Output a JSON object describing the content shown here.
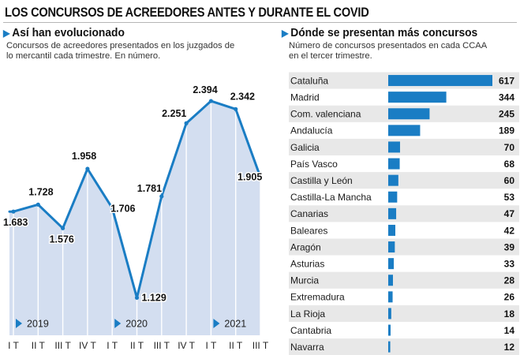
{
  "title": "LOS CONCURSOS DE ACREEDORES ANTES Y DURANTE EL COVID",
  "left": {
    "heading": "Así han evolucionado",
    "description": "Concursos de acreedores presentados en los juzgados de lo mercantil cada trimestre. En número."
  },
  "right": {
    "heading": "Dónde se presentan más concursos",
    "description": "Número de concursos presentados en cada CCAA en el tercer trimestre."
  },
  "colors": {
    "accent": "#1a7dc4",
    "area_fill": "#d3def0",
    "line": "#1a7dc4"
  },
  "icons": {
    "section_marker": "triangle-right-icon",
    "year_marker": "play-triangle-icon"
  },
  "chart_data": [
    {
      "type": "area",
      "categories": [
        "I T",
        "II T",
        "III T",
        "IV T",
        "I T",
        "II T",
        "III T",
        "IV T",
        "I T",
        "II T",
        "III T"
      ],
      "value_labels": [
        "1.683",
        "1.728",
        "1.576",
        "1.958",
        "1.706",
        "1.129",
        "1.781",
        "2.251",
        "2.394",
        "2.342",
        "1.905"
      ],
      "values": [
        1683,
        1728,
        1576,
        1958,
        1706,
        1129,
        1781,
        2251,
        2394,
        2342,
        1905
      ],
      "years": [
        {
          "label": "2019",
          "start_index": 0
        },
        {
          "label": "2020",
          "start_index": 4
        },
        {
          "label": "2021",
          "start_index": 8
        }
      ],
      "ylim": [
        1050,
        2450
      ],
      "grid": false
    },
    {
      "type": "bar",
      "orientation": "horizontal",
      "categories": [
        "Cataluña",
        "Madrid",
        "Com. valenciana",
        "Andalucía",
        "Galicia",
        "País Vasco",
        "Castilla y León",
        "Castilla-La Mancha",
        "Canarias",
        "Baleares",
        "Aragón",
        "Asturias",
        "Murcia",
        "Extremadura",
        "La Rioja",
        "Cantabria",
        "Navarra"
      ],
      "values": [
        617,
        344,
        245,
        189,
        70,
        68,
        60,
        53,
        47,
        42,
        39,
        33,
        28,
        26,
        18,
        14,
        12
      ],
      "xlim": [
        0,
        617
      ],
      "grid": false
    }
  ]
}
